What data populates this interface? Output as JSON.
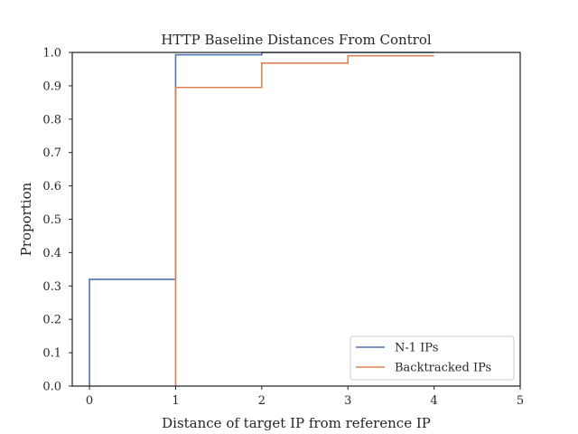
{
  "chart_data": {
    "type": "line",
    "step": true,
    "title": "HTTP Baseline Distances From Control",
    "xlabel": "Distance of target IP from reference IP",
    "ylabel": "Proportion",
    "xlim": [
      -0.2,
      5
    ],
    "ylim": [
      0,
      1
    ],
    "xticks": [
      0,
      1,
      2,
      3,
      4,
      5
    ],
    "yticks": [
      0.0,
      0.1,
      0.2,
      0.3,
      0.4,
      0.5,
      0.6,
      0.7,
      0.8,
      0.9,
      1.0
    ],
    "grid": false,
    "legend_position": "bottom-right",
    "series": [
      {
        "name": "N-1 IPs",
        "color": "#4c72b0",
        "points": [
          [
            0,
            0
          ],
          [
            0,
            0.32
          ],
          [
            1,
            0.32
          ],
          [
            1,
            0.993
          ],
          [
            2,
            0.993
          ],
          [
            2,
            1.0
          ],
          [
            4,
            1.0
          ]
        ]
      },
      {
        "name": "Backtracked IPs",
        "color": "#dd8452",
        "points": [
          [
            1,
            0
          ],
          [
            1,
            0.895
          ],
          [
            2,
            0.895
          ],
          [
            2,
            0.968
          ],
          [
            3,
            0.968
          ],
          [
            3,
            0.99
          ],
          [
            4,
            0.99
          ]
        ]
      }
    ]
  }
}
